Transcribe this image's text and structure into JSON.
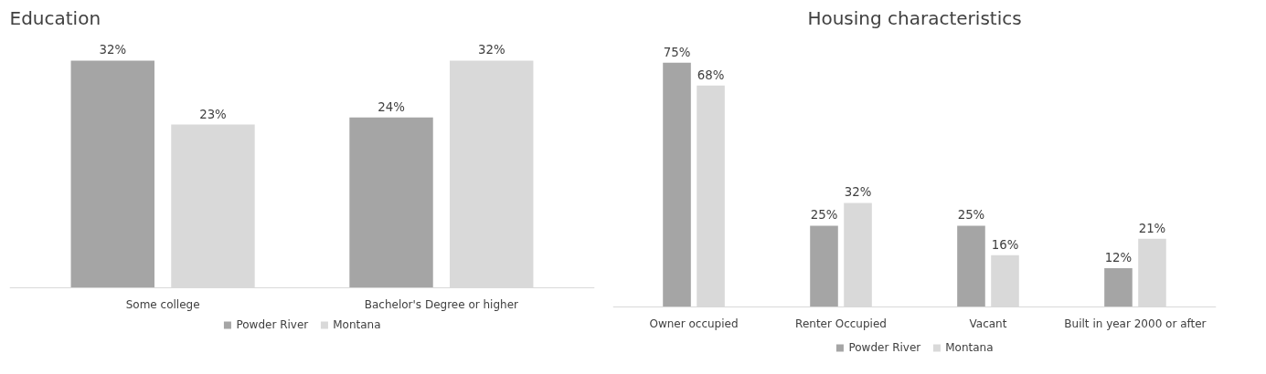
{
  "chart_data": [
    {
      "type": "bar",
      "title": "Education",
      "categories": [
        "Some college",
        "Bachelor's Degree or higher"
      ],
      "legend": "bottom",
      "grid": false,
      "series": [
        {
          "name": "Powder River",
          "color": "#a5a5a5",
          "values": [
            32,
            24
          ],
          "value_labels": [
            "32%",
            "24%"
          ]
        },
        {
          "name": "Montana",
          "color": "#d9d9d9",
          "values": [
            23,
            32
          ],
          "value_labels": [
            "23%",
            "32%"
          ]
        }
      ]
    },
    {
      "type": "bar",
      "title": "Housing characteristics",
      "categories": [
        "Owner occupied",
        "Renter Occupied",
        "Vacant",
        "Built in year 2000 or after"
      ],
      "legend": "bottom",
      "grid": false,
      "series": [
        {
          "name": "Powder River",
          "color": "#a5a5a5",
          "values": [
            75,
            25,
            25,
            12
          ],
          "value_labels": [
            "75%",
            "25%",
            "25%",
            "12%"
          ]
        },
        {
          "name": "Montana",
          "color": "#d9d9d9",
          "values": [
            68,
            32,
            16,
            21
          ],
          "value_labels": [
            "68%",
            "32%",
            "16%",
            "21%"
          ]
        }
      ]
    }
  ]
}
